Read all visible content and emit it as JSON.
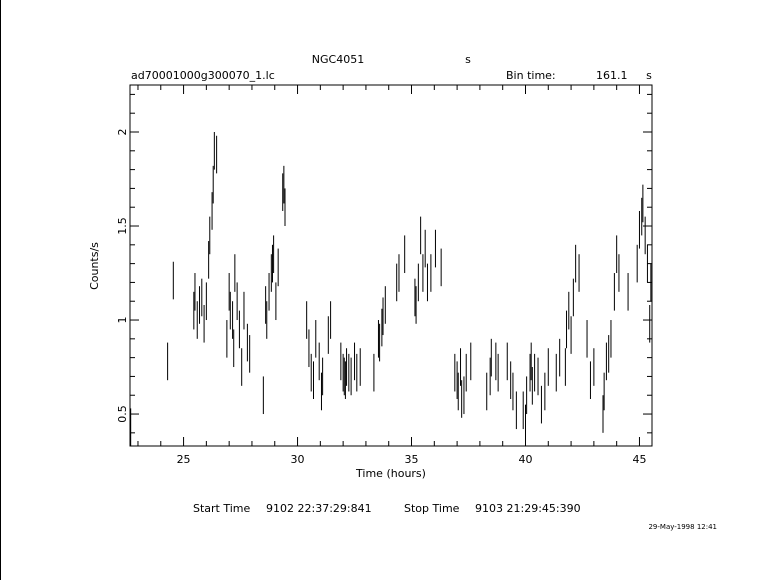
{
  "header": {
    "object": "NGC4051",
    "unit_flag": "s",
    "filename": "ad70001000g300070_1.lc",
    "bin_time_label": "Bin time:",
    "bin_time_value": "161.1",
    "bin_time_unit": "s"
  },
  "footer": {
    "start_label": "Start Time",
    "start_value": "9102 22:37:29:841",
    "stop_label": "Stop Time",
    "stop_value": "9103 21:29:45:390",
    "timestamp": "29-May-1998 12:41"
  },
  "colors": {
    "ink": "#000000",
    "background": "#ffffff"
  },
  "chart_data": {
    "type": "scatter",
    "style": "vertical error bars",
    "xlabel": "Time (hours)",
    "ylabel": "Counts/s",
    "xlim": [
      22.65,
      45.55
    ],
    "ylim": [
      0.33,
      2.25
    ],
    "xticks": [
      25,
      30,
      35,
      40,
      45
    ],
    "xtick_labels": [
      "25",
      "30",
      "35",
      "40",
      "45"
    ],
    "yticks": [
      0.5,
      1,
      1.5,
      2
    ],
    "ytick_labels": [
      "0.5",
      "1",
      "1.5",
      "2"
    ],
    "grid": false,
    "error_bar_halfwidth": 0.1,
    "points": [
      [
        22.68,
        0.43
      ],
      [
        24.3,
        0.78
      ],
      [
        24.55,
        1.21
      ],
      [
        25.45,
        1.05
      ],
      [
        25.5,
        1.15
      ],
      [
        25.6,
        1.0
      ],
      [
        25.7,
        1.08
      ],
      [
        25.8,
        1.12
      ],
      [
        25.9,
        0.98
      ],
      [
        26.0,
        1.1
      ],
      [
        26.1,
        1.32
      ],
      [
        26.15,
        1.45
      ],
      [
        26.25,
        1.58
      ],
      [
        26.3,
        1.72
      ],
      [
        26.35,
        1.9
      ],
      [
        26.45,
        1.88
      ],
      [
        26.9,
        0.9
      ],
      [
        27.0,
        1.15
      ],
      [
        27.05,
        1.05
      ],
      [
        27.15,
        1.0
      ],
      [
        27.2,
        0.85
      ],
      [
        27.25,
        1.25
      ],
      [
        27.35,
        1.1
      ],
      [
        27.45,
        0.95
      ],
      [
        27.55,
        0.75
      ],
      [
        27.65,
        1.05
      ],
      [
        27.8,
        0.88
      ],
      [
        27.9,
        0.82
      ],
      [
        28.5,
        0.6
      ],
      [
        28.6,
        1.08
      ],
      [
        28.65,
        1.0
      ],
      [
        28.75,
        1.15
      ],
      [
        28.85,
        1.25
      ],
      [
        28.9,
        1.3
      ],
      [
        28.95,
        1.35
      ],
      [
        29.05,
        1.1
      ],
      [
        29.15,
        1.28
      ],
      [
        29.35,
        1.68
      ],
      [
        29.4,
        1.72
      ],
      [
        29.45,
        1.6
      ],
      [
        30.4,
        1.0
      ],
      [
        30.5,
        0.85
      ],
      [
        30.6,
        0.72
      ],
      [
        30.7,
        0.68
      ],
      [
        30.8,
        0.9
      ],
      [
        30.95,
        0.78
      ],
      [
        31.05,
        0.62
      ],
      [
        31.1,
        0.7
      ],
      [
        31.35,
        0.92
      ],
      [
        31.45,
        1.0
      ],
      [
        31.9,
        0.78
      ],
      [
        32.0,
        0.72
      ],
      [
        32.05,
        0.7
      ],
      [
        32.1,
        0.68
      ],
      [
        32.15,
        0.75
      ],
      [
        32.25,
        0.72
      ],
      [
        32.35,
        0.7
      ],
      [
        32.5,
        0.78
      ],
      [
        32.6,
        0.72
      ],
      [
        32.75,
        0.75
      ],
      [
        33.35,
        0.72
      ],
      [
        33.55,
        0.9
      ],
      [
        33.6,
        0.88
      ],
      [
        33.7,
        0.96
      ],
      [
        33.75,
        1.02
      ],
      [
        33.85,
        1.08
      ],
      [
        34.35,
        1.2
      ],
      [
        34.45,
        1.25
      ],
      [
        34.7,
        1.35
      ],
      [
        35.15,
        1.12
      ],
      [
        35.2,
        1.08
      ],
      [
        35.3,
        1.2
      ],
      [
        35.4,
        1.45
      ],
      [
        35.5,
        1.25
      ],
      [
        35.6,
        1.38
      ],
      [
        35.7,
        1.2
      ],
      [
        35.85,
        1.25
      ],
      [
        36.05,
        1.38
      ],
      [
        36.3,
        1.28
      ],
      [
        36.9,
        0.72
      ],
      [
        37.0,
        0.68
      ],
      [
        37.05,
        0.62
      ],
      [
        37.15,
        0.75
      ],
      [
        37.2,
        0.58
      ],
      [
        37.3,
        0.6
      ],
      [
        37.4,
        0.72
      ],
      [
        37.6,
        0.78
      ],
      [
        38.3,
        0.62
      ],
      [
        38.45,
        0.7
      ],
      [
        38.5,
        0.8
      ],
      [
        38.7,
        0.78
      ],
      [
        38.8,
        0.72
      ],
      [
        39.2,
        0.78
      ],
      [
        39.35,
        0.68
      ],
      [
        39.45,
        0.62
      ],
      [
        39.6,
        0.52
      ],
      [
        39.9,
        0.52
      ],
      [
        40.0,
        0.45
      ],
      [
        40.05,
        0.6
      ],
      [
        40.2,
        0.72
      ],
      [
        40.25,
        0.78
      ],
      [
        40.3,
        0.65
      ],
      [
        40.4,
        0.72
      ],
      [
        40.55,
        0.7
      ],
      [
        40.7,
        0.55
      ],
      [
        40.85,
        0.62
      ],
      [
        41.0,
        0.75
      ],
      [
        41.35,
        0.72
      ],
      [
        41.5,
        0.8
      ],
      [
        41.75,
        0.75
      ],
      [
        41.8,
        0.95
      ],
      [
        41.9,
        1.05
      ],
      [
        42.0,
        0.92
      ],
      [
        42.1,
        1.12
      ],
      [
        42.2,
        1.3
      ],
      [
        42.35,
        1.25
      ],
      [
        42.7,
        0.9
      ],
      [
        42.85,
        0.68
      ],
      [
        43.0,
        0.75
      ],
      [
        43.4,
        0.5
      ],
      [
        43.45,
        0.62
      ],
      [
        43.55,
        0.78
      ],
      [
        43.65,
        0.82
      ],
      [
        43.75,
        0.9
      ],
      [
        43.9,
        1.15
      ],
      [
        44.0,
        1.35
      ],
      [
        44.1,
        1.25
      ],
      [
        44.5,
        1.15
      ],
      [
        44.9,
        1.3
      ],
      [
        45.0,
        1.48
      ],
      [
        45.1,
        1.55
      ],
      [
        45.15,
        1.62
      ],
      [
        45.25,
        1.45
      ],
      [
        45.35,
        1.3
      ],
      [
        45.45,
        0.98
      ],
      [
        45.5,
        1.2
      ]
    ]
  }
}
